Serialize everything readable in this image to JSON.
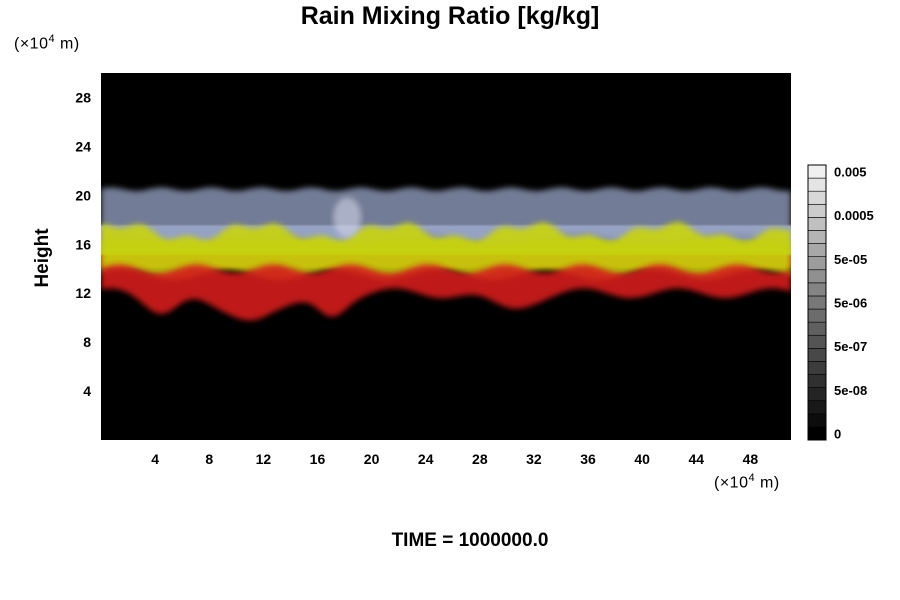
{
  "title": "Rain Mixing Ratio [kg/kg]",
  "y_scale_label": {
    "prefix": "(×10",
    "exp": "4",
    "suffix": " m)"
  },
  "x_scale_label": {
    "prefix": "(×10",
    "exp": "4",
    "suffix": " m)"
  },
  "time_label": "TIME = 1000000.0",
  "chart_data": {
    "type": "heatmap",
    "title": "Rain Mixing Ratio [kg/kg]",
    "xlabel": "",
    "ylabel": "Height",
    "x_unit": "×10^4 m",
    "y_unit": "×10^4 m",
    "xlim": [
      0,
      51
    ],
    "ylim": [
      0,
      30
    ],
    "x_ticks": [
      4,
      8,
      12,
      16,
      20,
      24,
      28,
      32,
      36,
      40,
      44,
      48
    ],
    "y_ticks": [
      4,
      8,
      12,
      16,
      20,
      24,
      28
    ],
    "colorbar": {
      "levels": 21,
      "scale": "log",
      "tick_labels": [
        "0",
        "5e-08",
        "5e-07",
        "5e-06",
        "5e-05",
        "0.0005",
        "0.005"
      ],
      "colors": [
        "#000000",
        "#0c0c0c",
        "#181818",
        "#242424",
        "#303030",
        "#3c3c3c",
        "#484848",
        "#545454",
        "#606060",
        "#6c6c6c",
        "#787878",
        "#848484",
        "#909090",
        "#9c9c9c",
        "#a8a8a8",
        "#b4b4b4",
        "#c0c0c0",
        "#cccccc",
        "#d8d8d8",
        "#e4e4e4",
        "#f0f0f0"
      ]
    },
    "layers": [
      {
        "description": "red band",
        "color": "#d41a1a",
        "y_range": [
          10.5,
          14
        ]
      },
      {
        "description": "yellow-green band",
        "color": "#c9d40e",
        "y_range": [
          13.5,
          17
        ]
      },
      {
        "description": "blue-gray band",
        "color": "#9aa6c8",
        "y_range": [
          16.5,
          20.5
        ]
      }
    ],
    "grid": false
  }
}
